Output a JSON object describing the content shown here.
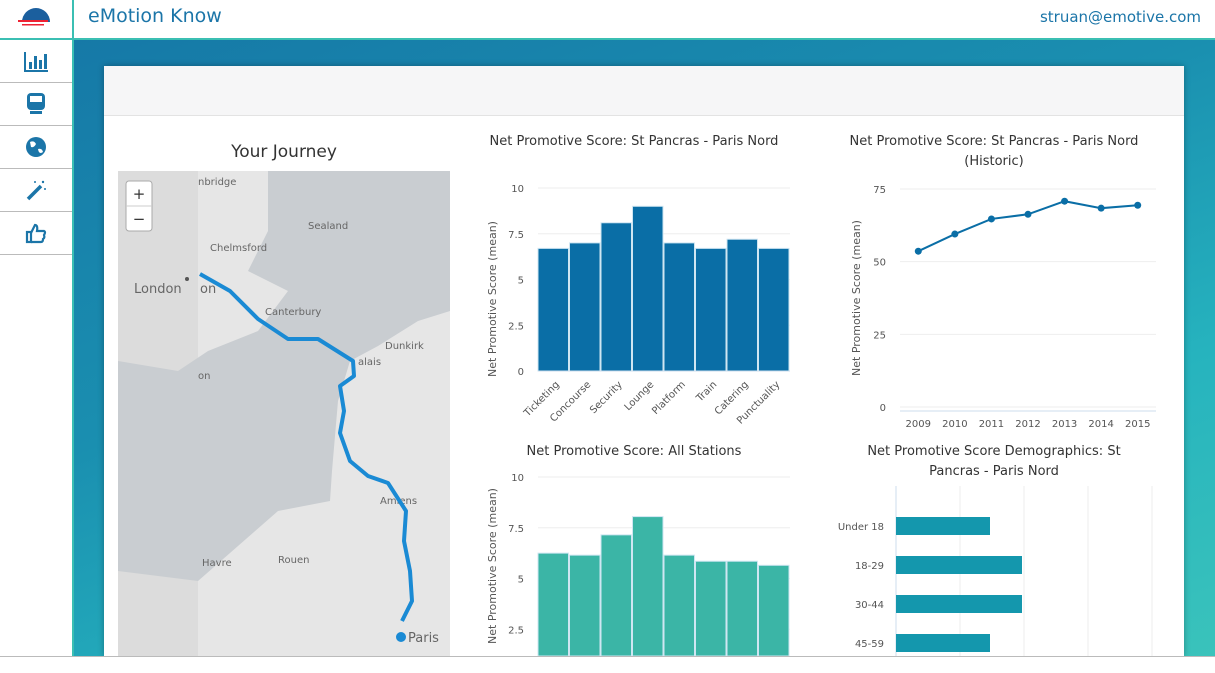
{
  "header": {
    "title": "eMotion Know",
    "user": "struan@emotive.com"
  },
  "sidebar": {
    "items": [
      {
        "icon": "bar-chart-icon"
      },
      {
        "icon": "train-icon"
      },
      {
        "icon": "globe-icon"
      },
      {
        "icon": "magic-wand-icon"
      },
      {
        "icon": "thumbs-up-icon"
      }
    ]
  },
  "map": {
    "title": "Your Journey",
    "zoom_in": "+",
    "zoom_out": "−",
    "labels": [
      "nbridge",
      "Sealand",
      "Chelmsford",
      "London",
      "on",
      "Canterbury",
      "Dunkirk",
      "alais",
      "on",
      "Amiens",
      "Havre",
      "Rouen",
      "Paris"
    ],
    "route_color": "#1a8ad4"
  },
  "colors": {
    "accent": "#1b75a8",
    "bar1": "#0a6ea6",
    "bar2": "#3bb5a6",
    "bar3": "#1497ad"
  },
  "chart_data": [
    {
      "type": "bar",
      "title": "Net Promotive Score: St Pancras - Paris Nord",
      "ylabel": "Net Promotive Score (mean)",
      "ylim": [
        0,
        10
      ],
      "yticks": [
        "0",
        "2.5",
        "5",
        "7.5",
        "10"
      ],
      "categories": [
        "Ticketing",
        "Concourse",
        "Security",
        "Lounge",
        "Platform",
        "Train",
        "Catering",
        "Punctuality"
      ],
      "values": [
        6.7,
        7.0,
        8.1,
        9.0,
        7.0,
        6.7,
        7.2,
        6.7
      ]
    },
    {
      "type": "line",
      "title": "Net Promotive Score: St Pancras - Paris Nord (Historic)",
      "ylabel": "Net Promotive Score (mean)",
      "ylim": [
        0,
        75
      ],
      "yticks": [
        "0",
        "25",
        "50",
        "75"
      ],
      "categories": [
        "2009",
        "2010",
        "2011",
        "2012",
        "2013",
        "2014",
        "2015"
      ],
      "values": [
        53.6,
        59.5,
        64.7,
        66.3,
        70.8,
        68.4,
        69.4
      ]
    },
    {
      "type": "bar",
      "title": "Net Promotive Score: All Stations",
      "ylabel": "Net Promotive Score (mean)",
      "ylim": [
        0,
        10
      ],
      "yticks": [
        "2.5",
        "5",
        "7.5",
        "10"
      ],
      "values": [
        6.25,
        6.15,
        7.15,
        8.05,
        6.15,
        5.85,
        5.85,
        5.65
      ]
    },
    {
      "type": "bar",
      "orientation": "horizontal",
      "title": "Net Promotive Score Demographics: St Pancras - Paris Nord",
      "categories": [
        "Under 18",
        "18-29",
        "30-44",
        "45-59"
      ],
      "values": [
        1.5,
        2,
        2,
        1.5
      ]
    }
  ]
}
